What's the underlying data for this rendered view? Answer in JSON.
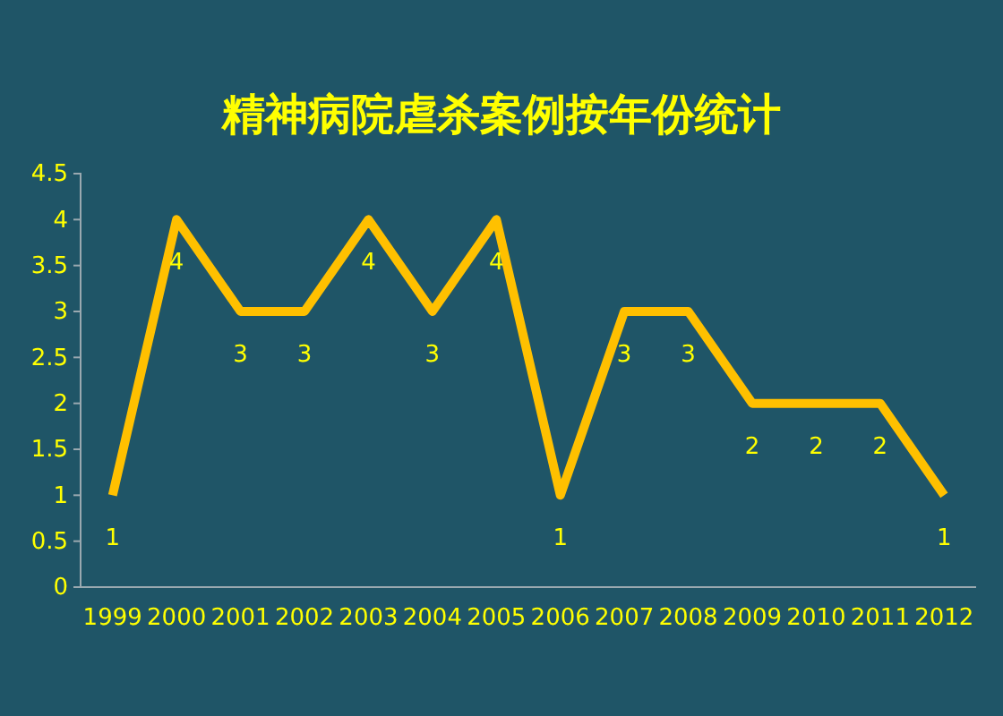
{
  "chart_data": {
    "type": "line",
    "title": "精神病院虐杀案例按年份统计",
    "categories": [
      "1999",
      "2000",
      "2001",
      "2002",
      "2003",
      "2004",
      "2005",
      "2006",
      "2007",
      "2008",
      "2009",
      "2010",
      "2011",
      "2012"
    ],
    "series": [
      {
        "color": "#ffc000",
        "values": [
          1,
          4,
          3,
          3,
          4,
          3,
          4,
          1,
          3,
          3,
          2,
          2,
          2,
          1
        ]
      }
    ],
    "ylim": [
      0,
      4.5
    ],
    "yticks": [
      0,
      {
        "value": 0.5,
        "label": "0.5"
      },
      1,
      {
        "value": 1.5,
        "label": "1.5"
      },
      2,
      {
        "value": 2.5,
        "label": "2.5"
      },
      3,
      {
        "value": 3.5,
        "label": "3.5"
      },
      4,
      {
        "value": 4.5,
        "label": "4.5"
      }
    ],
    "grid": false,
    "marker": "none",
    "line_style": "solid",
    "data_labels": true
  }
}
